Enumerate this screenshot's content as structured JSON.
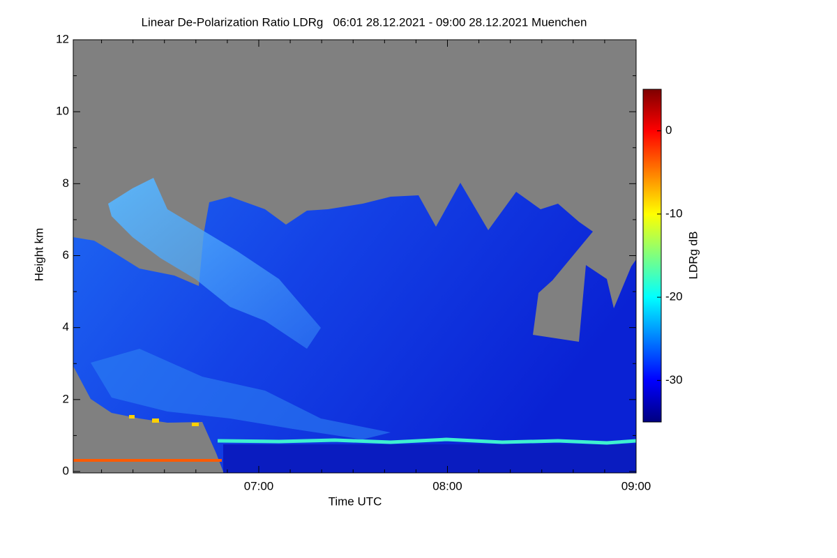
{
  "chart_data": {
    "type": "heatmap",
    "title": "Linear De-Polarization Ratio LDRg   06:01 28.12.2021 - 09:00 28.12.2021 Muenchen",
    "x_label": "Time UTC",
    "y_label": "Height km",
    "colorbar_label": "LDRg dB",
    "xlim": [
      361,
      540
    ],
    "xticks": [
      {
        "value": 420,
        "label": "07:00"
      },
      {
        "value": 480,
        "label": "08:00"
      },
      {
        "value": 540,
        "label": "09:00"
      }
    ],
    "xminorticks": [
      370,
      380,
      390,
      400,
      410,
      430,
      440,
      450,
      460,
      470,
      490,
      500,
      510,
      520,
      530
    ],
    "ylim": [
      0,
      12
    ],
    "yticks": [
      0,
      2,
      4,
      6,
      8,
      10,
      12
    ],
    "yminorticks": [
      1,
      3,
      5,
      7,
      9,
      11
    ],
    "clim": [
      -35,
      5
    ],
    "cticks": [
      0,
      -10,
      -20,
      -30
    ],
    "colormap": [
      "#00007f",
      "#0000ff",
      "#007fff",
      "#00ffff",
      "#7fff7f",
      "#ffff00",
      "#ff7f00",
      "#ff0000",
      "#7f0000"
    ],
    "missing_color": "#808080"
  }
}
